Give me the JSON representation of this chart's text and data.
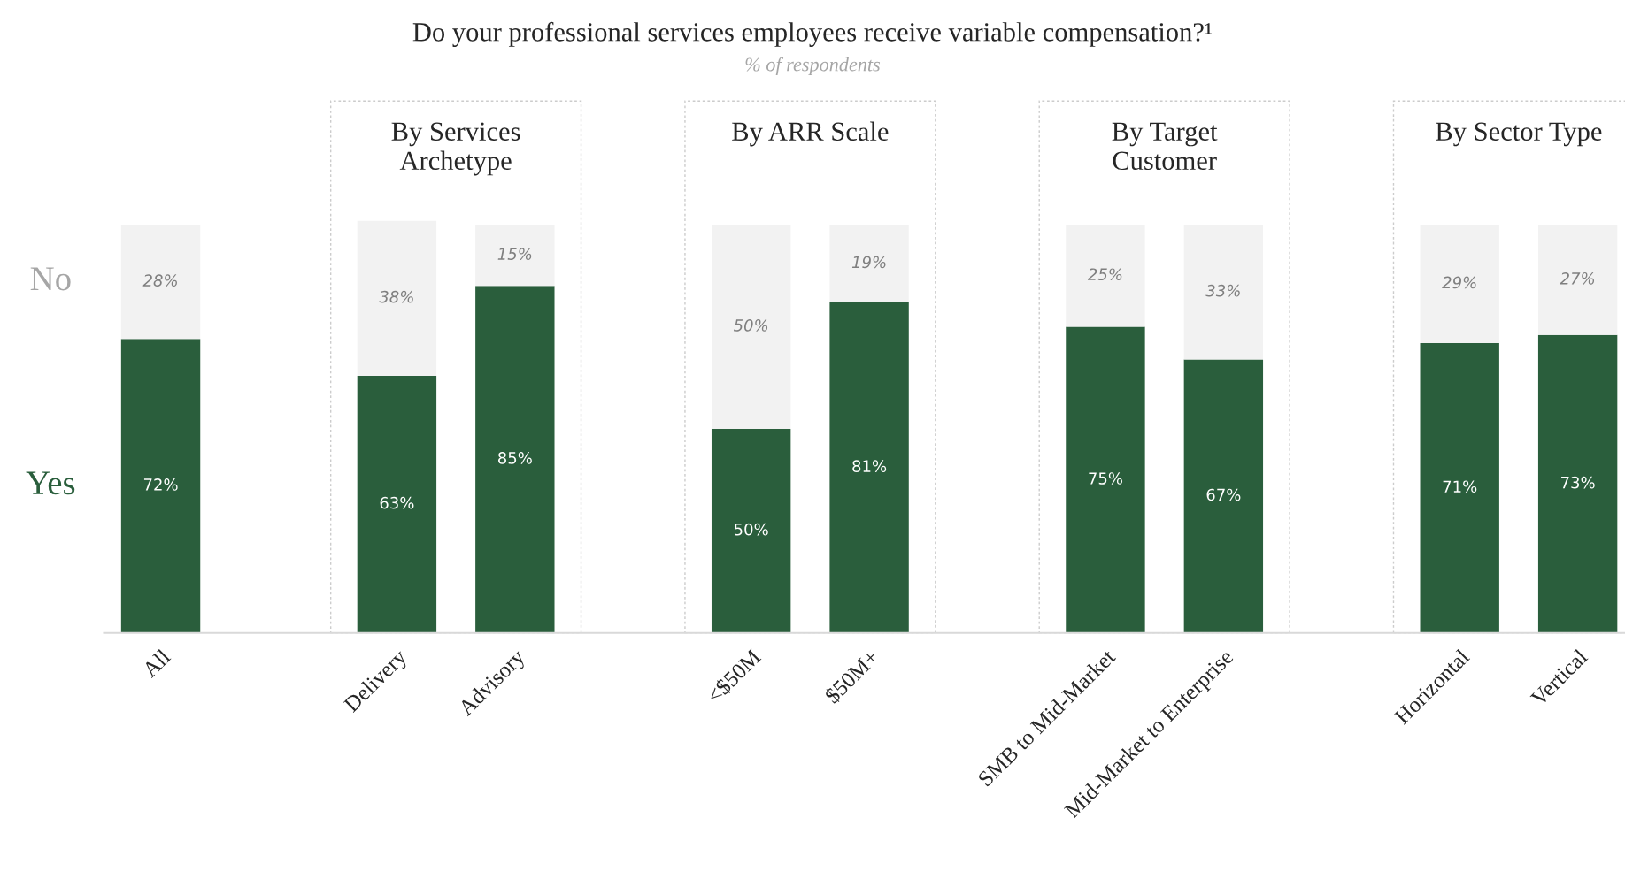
{
  "chart_data": {
    "type": "bar",
    "stacked": true,
    "title": "Do your professional services employees receive variable compensation?¹",
    "subtitle": "% of respondents",
    "categories": [
      "All",
      null,
      "Delivery",
      "Advisory",
      null,
      "<$50M",
      "$50M+",
      null,
      "SMB to Mid-Market",
      "Mid-Market to Enterprise",
      null,
      "Horizontal",
      "Vertical"
    ],
    "series": [
      {
        "name": "Yes",
        "color": "#2a5e3c",
        "values": [
          72,
          null,
          63,
          85,
          null,
          50,
          81,
          null,
          75,
          67,
          null,
          71,
          73
        ],
        "value_labels": [
          "72%",
          null,
          "63%",
          "85%",
          null,
          "50%",
          "81%",
          null,
          "75%",
          "67%",
          null,
          "71%",
          "73%"
        ]
      },
      {
        "name": "No",
        "color": "#f2f2f2",
        "values": [
          28,
          null,
          38,
          15,
          null,
          50,
          19,
          null,
          25,
          33,
          null,
          29,
          27
        ],
        "value_labels": [
          "28%",
          null,
          "38%",
          "15%",
          null,
          "50%",
          "19%",
          null,
          "25%",
          "33%",
          null,
          "29%",
          "27%"
        ]
      }
    ],
    "annotations": [
      "By Services\nArchetype",
      "By ARR Scale",
      "By Target\nCustomer",
      "By Sector Type"
    ],
    "legend": false,
    "grid": false
  }
}
